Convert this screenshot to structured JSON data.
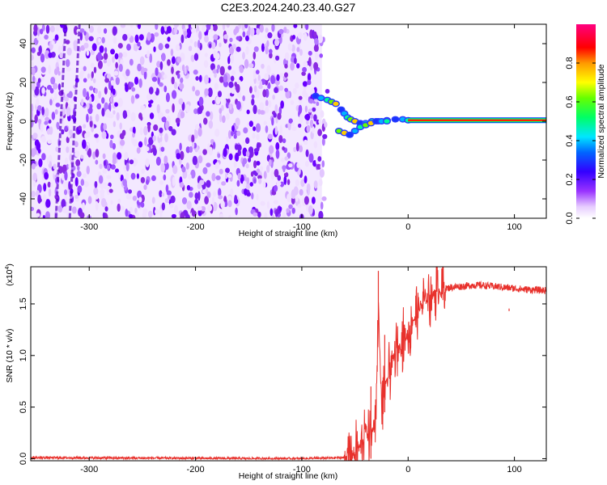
{
  "figure": {
    "title": "C2E3.2024.240.23.40.G27"
  },
  "chart_data": [
    {
      "type": "heatmap",
      "id": "spectrogram",
      "xlabel": "Height of straight line (km)",
      "ylabel": "Frequency (Hz)",
      "xlim": [
        -355,
        130
      ],
      "ylim": [
        -50,
        50
      ],
      "xticks": [
        -300,
        -200,
        -100,
        0,
        100
      ],
      "yticks": [
        -40,
        -20,
        0,
        20,
        40
      ],
      "noise_region": [
        -355,
        -75
      ],
      "signal_line": {
        "x_start": 0,
        "x_end": 130,
        "frequency": 0.5
      },
      "signal_trace": [
        {
          "x": -87,
          "y": 13
        },
        {
          "x": -82,
          "y": 12
        },
        {
          "x": -76,
          "y": 11
        },
        {
          "x": -72,
          "y": 10
        },
        {
          "x": -68,
          "y": 9
        },
        {
          "x": -63,
          "y": 6
        },
        {
          "x": -60,
          "y": 4
        },
        {
          "x": -57,
          "y": 2
        },
        {
          "x": -54,
          "y": 1
        },
        {
          "x": -50,
          "y": 0
        },
        {
          "x": -45,
          "y": -1
        },
        {
          "x": -40,
          "y": -1
        },
        {
          "x": -34,
          "y": 0
        },
        {
          "x": -28,
          "y": 0
        },
        {
          "x": -20,
          "y": 0.5
        },
        {
          "x": -12,
          "y": 1
        },
        {
          "x": -5,
          "y": 1
        },
        {
          "x": 0,
          "y": 0.5
        }
      ],
      "signal_trace_lower": [
        {
          "x": -65,
          "y": -5
        },
        {
          "x": -60,
          "y": -6
        },
        {
          "x": -55,
          "y": -7
        },
        {
          "x": -50,
          "y": -5
        },
        {
          "x": -45,
          "y": -3
        },
        {
          "x": -40,
          "y": -2
        },
        {
          "x": -35,
          "y": -1
        },
        {
          "x": -30,
          "y": 0
        },
        {
          "x": -25,
          "y": 0
        },
        {
          "x": -20,
          "y": 0
        }
      ],
      "colorbar": {
        "label": "Normalized spectral amplitude",
        "ticks": [
          0.0,
          0.2,
          0.4,
          0.6,
          0.8
        ],
        "range": [
          0,
          1
        ],
        "colors": [
          "#ffffff",
          "#d8b0ff",
          "#8000ff",
          "#0000ff",
          "#00ffff",
          "#00ff00",
          "#ffff00",
          "#ff8000",
          "#ff0000",
          "#ff00ff"
        ]
      }
    },
    {
      "type": "line",
      "id": "snr",
      "xlabel": "Height of straight line (km)",
      "ylabel": "SNR (10 * v/v)",
      "y_multiplier_label": "(x10",
      "y_multiplier_exp": "4",
      "y_multiplier_close": ")",
      "xlim": [
        -355,
        130
      ],
      "ylim": [
        -0.02,
        1.86
      ],
      "xticks": [
        -300,
        -200,
        -100,
        0,
        100
      ],
      "yticks": [
        0.0,
        0.5,
        1.0,
        1.5
      ],
      "ytick_labels": [
        "0.0",
        "0.5",
        "1.0",
        "1.5"
      ],
      "color": "#e8312c",
      "envelope": {
        "x": [
          -355,
          -100,
          -60,
          -50,
          -45,
          -40,
          -35,
          -30,
          -28,
          -25,
          -20,
          -15,
          -10,
          -5,
          0,
          5,
          10,
          15,
          20,
          25,
          30,
          40,
          50,
          60,
          70,
          80,
          90,
          100,
          110,
          130
        ],
        "y": [
          0.01,
          0.0,
          0.01,
          0.05,
          0.12,
          0.3,
          0.2,
          0.45,
          1.5,
          0.5,
          0.75,
          0.95,
          1.05,
          1.15,
          1.2,
          1.35,
          1.45,
          1.52,
          1.57,
          1.6,
          1.63,
          1.66,
          1.67,
          1.68,
          1.68,
          1.67,
          1.66,
          1.65,
          1.64,
          1.63
        ]
      },
      "spikes": [
        {
          "x": -28,
          "y": 1.82
        },
        {
          "x": -35,
          "y": 0.7
        },
        {
          "x": -22,
          "y": 1.2
        },
        {
          "x": 95,
          "y": 1.43
        }
      ]
    }
  ]
}
